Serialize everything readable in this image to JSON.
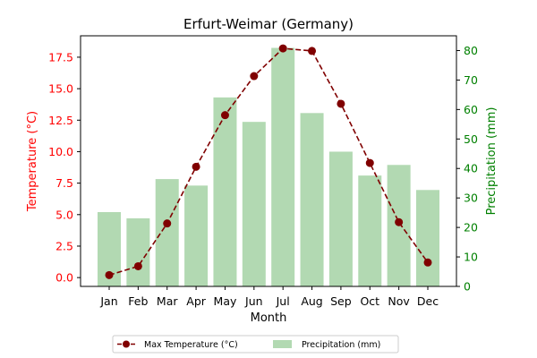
{
  "chart_data": {
    "type": "bar+line",
    "title": "Erfurt-Weimar (Germany)",
    "xlabel": "Month",
    "categories": [
      "Jan",
      "Feb",
      "Mar",
      "Apr",
      "May",
      "Jun",
      "Jul",
      "Aug",
      "Sep",
      "Oct",
      "Nov",
      "Dec"
    ],
    "left_axis": {
      "label": "Temperature (°C)",
      "color": "#ff0000",
      "ylim": [
        -0.7,
        19.2
      ],
      "ticks": [
        "0.0",
        "2.5",
        "5.0",
        "7.5",
        "10.0",
        "12.5",
        "15.0",
        "17.5"
      ]
    },
    "right_axis": {
      "label": "Precipitation (mm)",
      "color": "#008000",
      "ylim": [
        0,
        85
      ],
      "ticks": [
        "0",
        "10",
        "20",
        "30",
        "40",
        "50",
        "60",
        "70",
        "80"
      ]
    },
    "series": [
      {
        "name": "Max Temperature (°C)",
        "type": "line",
        "axis": "left",
        "color": "#800000",
        "line_style": "dashed",
        "marker": "circle",
        "values": [
          0.2,
          0.9,
          4.3,
          8.8,
          12.9,
          16.0,
          18.2,
          18.0,
          13.8,
          9.1,
          4.4,
          1.2
        ]
      },
      {
        "name": "Precipitation (mm)",
        "type": "bar",
        "axis": "right",
        "color": "#b2d9b2",
        "values": [
          25.2,
          23.1,
          36.4,
          34.2,
          64.1,
          55.8,
          80.9,
          58.8,
          45.7,
          37.6,
          41.2,
          32.7
        ]
      }
    ],
    "legend": {
      "position": "bottom-center",
      "columns": 2
    },
    "grid": false
  }
}
